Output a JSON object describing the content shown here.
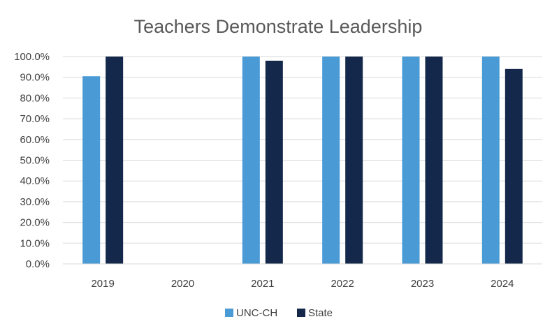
{
  "chart_data": {
    "type": "bar",
    "title": "Teachers Demonstrate Leadership",
    "xlabel": "",
    "ylabel": "",
    "categories": [
      "2019",
      "2020",
      "2021",
      "2022",
      "2023",
      "2024"
    ],
    "series": [
      {
        "name": "UNC-CH",
        "color": "#4a9ad5",
        "values": [
          90.5,
          null,
          100.0,
          100.0,
          100.0,
          100.0
        ]
      },
      {
        "name": "State",
        "color": "#14284b",
        "values": [
          100.0,
          null,
          98.0,
          100.0,
          100.0,
          94.0
        ]
      }
    ],
    "ylim": [
      0,
      100
    ],
    "yticks": [
      0,
      10,
      20,
      30,
      40,
      50,
      60,
      70,
      80,
      90,
      100
    ],
    "ytick_labels": [
      "0.0%",
      "10.0%",
      "20.0%",
      "30.0%",
      "40.0%",
      "50.0%",
      "60.0%",
      "70.0%",
      "80.0%",
      "90.0%",
      "100.0%"
    ],
    "grid": true,
    "legend_position": "bottom",
    "gridline_color": "#d9d9d9"
  }
}
